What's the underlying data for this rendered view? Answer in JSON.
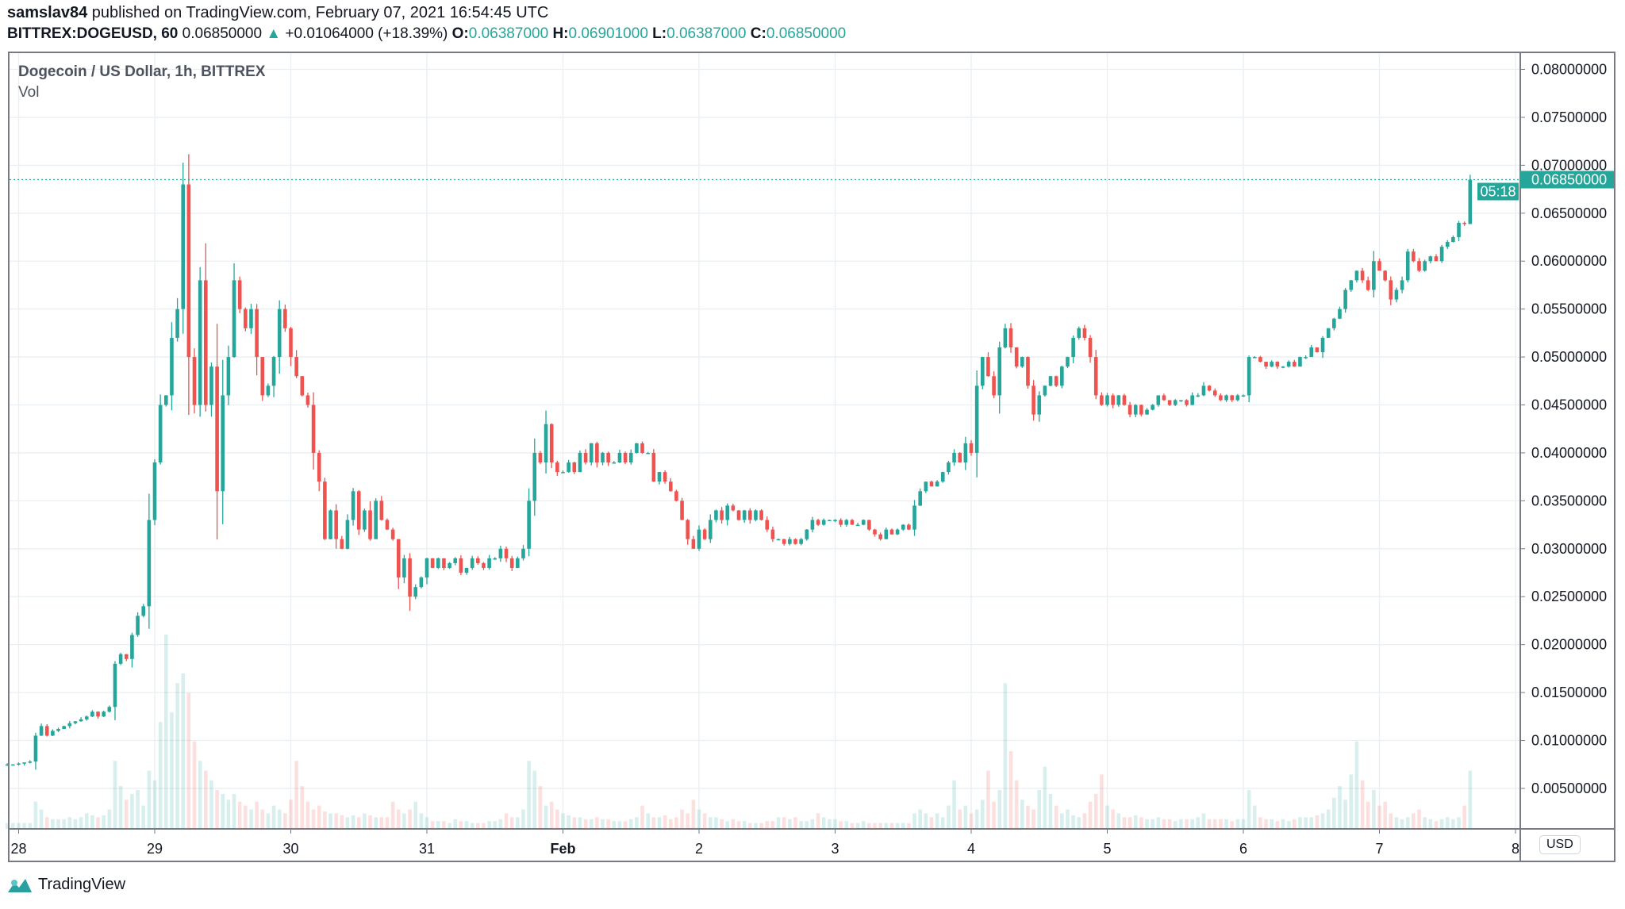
{
  "header": {
    "author": "samslav84",
    "published": "published on TradingView.com, February 07, 2021 16:54:45 UTC",
    "symbol": "BITTREX:DOGEUSD, 60",
    "last": "0.06850000",
    "change": "+0.01064000 (+18.39%)",
    "o_label": "O:",
    "o": "0.06387000",
    "h_label": "H:",
    "h": "0.06901000",
    "l_label": "L:",
    "l": "0.06387000",
    "c_label": "C:",
    "c": "0.06850000"
  },
  "legend": {
    "title": "Dogecoin / US Dollar, 1h, BITTREX",
    "vol": "Vol"
  },
  "currency": "USD",
  "price_tag": "0.06850000",
  "countdown": "05:18",
  "brand": "TradingView",
  "colors": {
    "up": "#26a69a",
    "down": "#ef5350",
    "grid": "#e9eff2",
    "axis": "#787b86"
  },
  "chart_data": {
    "type": "candlestick",
    "ylim": [
      0,
      0.08
    ],
    "yticks": [
      "0.00500000",
      "0.01000000",
      "0.01500000",
      "0.02000000",
      "0.02500000",
      "0.03000000",
      "0.03500000",
      "0.04000000",
      "0.04500000",
      "0.05000000",
      "0.05500000",
      "0.06000000",
      "0.06500000",
      "0.07000000",
      "0.07500000",
      "0.08000000"
    ],
    "xticks": [
      {
        "label": "28",
        "bold": false
      },
      {
        "label": "29",
        "bold": false
      },
      {
        "label": "30",
        "bold": false
      },
      {
        "label": "31",
        "bold": false
      },
      {
        "label": "Feb",
        "bold": true
      },
      {
        "label": "2",
        "bold": false
      },
      {
        "label": "3",
        "bold": false
      },
      {
        "label": "4",
        "bold": false
      },
      {
        "label": "5",
        "bold": false
      },
      {
        "label": "6",
        "bold": false
      },
      {
        "label": "7",
        "bold": false
      },
      {
        "label": "8",
        "bold": false
      }
    ],
    "start": "2021-01-27 22:00",
    "closes": [
      0.0075,
      0.0075,
      0.0076,
      0.0077,
      0.0078,
      0.0105,
      0.0115,
      0.0105,
      0.011,
      0.0112,
      0.0115,
      0.0118,
      0.012,
      0.0122,
      0.0125,
      0.013,
      0.0125,
      0.013,
      0.0135,
      0.018,
      0.019,
      0.0185,
      0.021,
      0.023,
      0.024,
      0.033,
      0.039,
      0.045,
      0.046,
      0.052,
      0.055,
      0.068,
      0.05,
      0.045,
      0.058,
      0.045,
      0.049,
      0.036,
      0.046,
      0.05,
      0.058,
      0.055,
      0.053,
      0.055,
      0.05,
      0.046,
      0.047,
      0.05,
      0.055,
      0.053,
      0.05,
      0.048,
      0.046,
      0.045,
      0.04,
      0.037,
      0.031,
      0.034,
      0.031,
      0.03,
      0.033,
      0.036,
      0.032,
      0.034,
      0.031,
      0.035,
      0.033,
      0.032,
      0.031,
      0.027,
      0.029,
      0.025,
      0.026,
      0.027,
      0.029,
      0.028,
      0.029,
      0.028,
      0.0285,
      0.029,
      0.0275,
      0.028,
      0.029,
      0.0285,
      0.028,
      0.029,
      0.029,
      0.03,
      0.029,
      0.028,
      0.029,
      0.03,
      0.035,
      0.04,
      0.039,
      0.043,
      0.039,
      0.038,
      0.038,
      0.039,
      0.038,
      0.04,
      0.039,
      0.041,
      0.039,
      0.04,
      0.039,
      0.039,
      0.04,
      0.039,
      0.04,
      0.041,
      0.04,
      0.04,
      0.037,
      0.038,
      0.037,
      0.036,
      0.035,
      0.033,
      0.031,
      0.03,
      0.032,
      0.031,
      0.033,
      0.034,
      0.033,
      0.0345,
      0.034,
      0.033,
      0.034,
      0.033,
      0.034,
      0.033,
      0.032,
      0.031,
      0.031,
      0.0305,
      0.031,
      0.0305,
      0.031,
      0.032,
      0.033,
      0.0325,
      0.033,
      0.033,
      0.033,
      0.0325,
      0.033,
      0.0325,
      0.0325,
      0.033,
      0.032,
      0.0315,
      0.031,
      0.032,
      0.0315,
      0.032,
      0.0325,
      0.032,
      0.0345,
      0.036,
      0.037,
      0.0365,
      0.037,
      0.038,
      0.039,
      0.04,
      0.039,
      0.041,
      0.04,
      0.047,
      0.05,
      0.048,
      0.046,
      0.051,
      0.053,
      0.051,
      0.049,
      0.05,
      0.047,
      0.044,
      0.046,
      0.047,
      0.048,
      0.047,
      0.049,
      0.05,
      0.052,
      0.053,
      0.052,
      0.05,
      0.046,
      0.045,
      0.046,
      0.045,
      0.046,
      0.045,
      0.044,
      0.045,
      0.044,
      0.0445,
      0.045,
      0.046,
      0.0455,
      0.045,
      0.0455,
      0.0455,
      0.045,
      0.046,
      0.046,
      0.047,
      0.0465,
      0.046,
      0.0455,
      0.046,
      0.0455,
      0.046,
      0.046,
      0.05,
      0.05,
      0.0495,
      0.049,
      0.0495,
      0.049,
      0.049,
      0.0495,
      0.049,
      0.05,
      0.05,
      0.051,
      0.0505,
      0.052,
      0.053,
      0.054,
      0.055,
      0.057,
      0.058,
      0.059,
      0.058,
      0.057,
      0.06,
      0.059,
      0.058,
      0.056,
      0.057,
      0.058,
      0.061,
      0.06,
      0.059,
      0.06,
      0.0605,
      0.06,
      0.0615,
      0.062,
      0.0625,
      0.064,
      0.06387,
      0.0685
    ],
    "volume_relative": [
      3,
      3,
      3,
      3,
      3,
      14,
      10,
      6,
      5,
      5,
      5,
      6,
      5,
      6,
      8,
      7,
      6,
      7,
      10,
      35,
      22,
      15,
      18,
      20,
      12,
      30,
      25,
      55,
      100,
      60,
      75,
      80,
      70,
      45,
      35,
      30,
      25,
      20,
      18,
      15,
      18,
      14,
      12,
      10,
      14,
      10,
      8,
      12,
      10,
      8,
      15,
      35,
      22,
      14,
      10,
      12,
      9,
      8,
      8,
      7,
      6,
      7,
      6,
      8,
      7,
      6,
      6,
      6,
      14,
      10,
      8,
      10,
      14,
      8,
      6,
      4,
      4,
      4,
      3,
      5,
      4,
      4,
      3,
      3,
      3,
      4,
      4,
      5,
      8,
      6,
      6,
      10,
      35,
      30,
      22,
      12,
      14,
      10,
      8,
      7,
      6,
      6,
      5,
      5,
      6,
      5,
      5,
      4,
      4,
      4,
      5,
      6,
      12,
      8,
      6,
      6,
      7,
      5,
      6,
      10,
      8,
      15,
      10,
      8,
      6,
      6,
      5,
      4,
      5,
      4,
      4,
      3,
      3,
      3,
      4,
      4,
      6,
      6,
      5,
      6,
      4,
      4,
      5,
      8,
      6,
      5,
      5,
      4,
      4,
      3,
      3,
      4,
      3,
      3,
      3,
      3,
      3,
      3,
      3,
      3,
      8,
      10,
      8,
      6,
      8,
      6,
      12,
      25,
      10,
      12,
      8,
      10,
      15,
      30,
      14,
      20,
      75,
      40,
      25,
      15,
      12,
      10,
      20,
      32,
      18,
      12,
      8,
      10,
      7,
      6,
      8,
      14,
      18,
      28,
      12,
      10,
      8,
      6,
      6,
      7,
      6,
      5,
      5,
      6,
      5,
      5,
      4,
      5,
      5,
      5,
      6,
      8,
      5,
      5,
      5,
      5,
      4,
      5,
      5,
      20,
      12,
      6,
      5,
      5,
      4,
      5,
      4,
      5,
      6,
      6,
      6,
      7,
      8,
      10,
      16,
      22,
      15,
      28,
      45,
      25,
      14,
      20,
      12,
      14,
      8,
      6,
      5,
      6,
      8,
      10,
      6,
      5,
      4,
      5,
      6,
      5,
      6,
      12,
      30
    ]
  }
}
